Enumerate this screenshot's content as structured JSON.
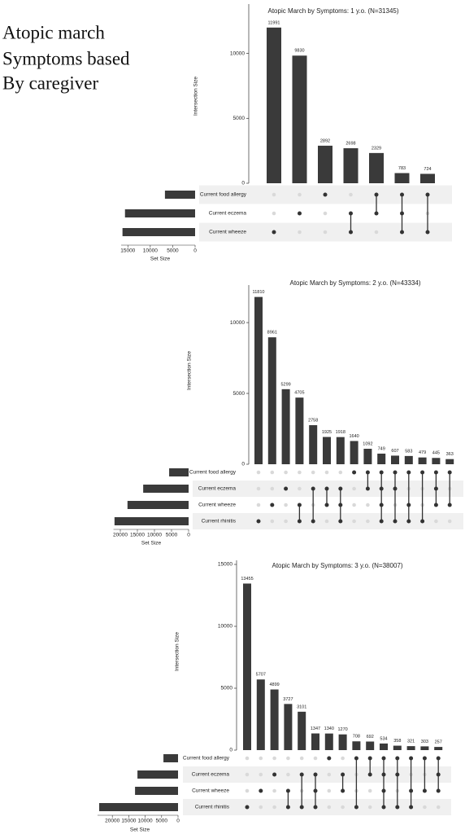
{
  "caption": [
    "Atopic march",
    "Symptoms based",
    "By caregiver"
  ],
  "chart_data": [
    {
      "type": "upset",
      "title": "Atopic March by Symptoms: 1 y.o. (N=31345)",
      "y_label": "Intersection Size",
      "x_label": "Set Size",
      "sets": [
        "Current food allergy",
        "Current eczema",
        "Current wheeze"
      ],
      "set_sizes": [
        6728,
        15640,
        16196
      ],
      "set_xlim": [
        16500,
        0
      ],
      "set_xticks": [
        15000,
        10000,
        5000,
        0
      ],
      "intersections": [
        [
          2
        ],
        [
          1
        ],
        [
          0
        ],
        [
          1,
          2
        ],
        [
          0,
          1
        ],
        [
          0,
          1,
          2
        ],
        [
          0,
          2
        ]
      ],
      "values": [
        11991,
        9830,
        2892,
        2698,
        2329,
        783,
        724
      ],
      "ylim": [
        0,
        13800
      ],
      "yticks": [
        0,
        5000,
        10000
      ]
    },
    {
      "type": "upset",
      "title": "Atopic March by Symptoms: 2 y.o. (N=43334)",
      "y_label": "Intersection Size",
      "x_label": "Set Size",
      "sets": [
        "Current food allergy",
        "Current eczema",
        "Current wheeze",
        "Current rhinitis"
      ],
      "set_sizes": [
        5700,
        13300,
        17900,
        21700
      ],
      "set_xlim": [
        22000,
        0
      ],
      "set_xticks": [
        20000,
        15000,
        10000,
        5000,
        0
      ],
      "intersections": [
        [
          3
        ],
        [
          2
        ],
        [
          1
        ],
        [
          2,
          3
        ],
        [
          1,
          3
        ],
        [
          1,
          2
        ],
        [
          1,
          2,
          3
        ],
        [
          0
        ],
        [
          0,
          1
        ],
        [
          0,
          1,
          2,
          3
        ],
        [
          0,
          1,
          3
        ],
        [
          0,
          2,
          3
        ],
        [
          0,
          3
        ],
        [
          0,
          1,
          2
        ],
        [
          0,
          2
        ]
      ],
      "values": [
        11810,
        8961,
        5299,
        4705,
        2758,
        1925,
        1918,
        1640,
        1092,
        749,
        607,
        583,
        479,
        445,
        363
      ],
      "ylim": [
        0,
        12650
      ],
      "yticks": [
        0,
        5000,
        10000
      ]
    },
    {
      "type": "upset",
      "title": "Atopic March by Symptoms: 3 y.o. (N=38007)",
      "y_label": "Intersection Size",
      "x_label": "Set Size",
      "sets": [
        "Current food allergy",
        "Current eczema",
        "Current wheeze",
        "Current rhinitis"
      ],
      "set_sizes": [
        4440,
        12350,
        13090,
        24000
      ],
      "set_xlim": [
        24500,
        0
      ],
      "set_xticks": [
        20000,
        15000,
        10000,
        5000,
        0
      ],
      "intersections": [
        [
          3
        ],
        [
          2
        ],
        [
          1
        ],
        [
          2,
          3
        ],
        [
          1,
          3
        ],
        [
          1,
          2,
          3
        ],
        [
          0
        ],
        [
          1,
          2
        ],
        [
          0,
          3
        ],
        [
          0,
          1
        ],
        [
          0,
          1,
          2,
          3
        ],
        [
          0,
          1,
          3
        ],
        [
          0,
          2,
          3
        ],
        [
          0,
          2
        ],
        [
          0,
          1,
          2
        ]
      ],
      "values": [
        13455,
        5707,
        4899,
        3727,
        3101,
        1347,
        1340,
        1270,
        708,
        692,
        534,
        358,
        321,
        303,
        257
      ],
      "ylim": [
        0,
        15330
      ],
      "yticks": [
        0,
        5000,
        10000,
        15000
      ]
    }
  ]
}
